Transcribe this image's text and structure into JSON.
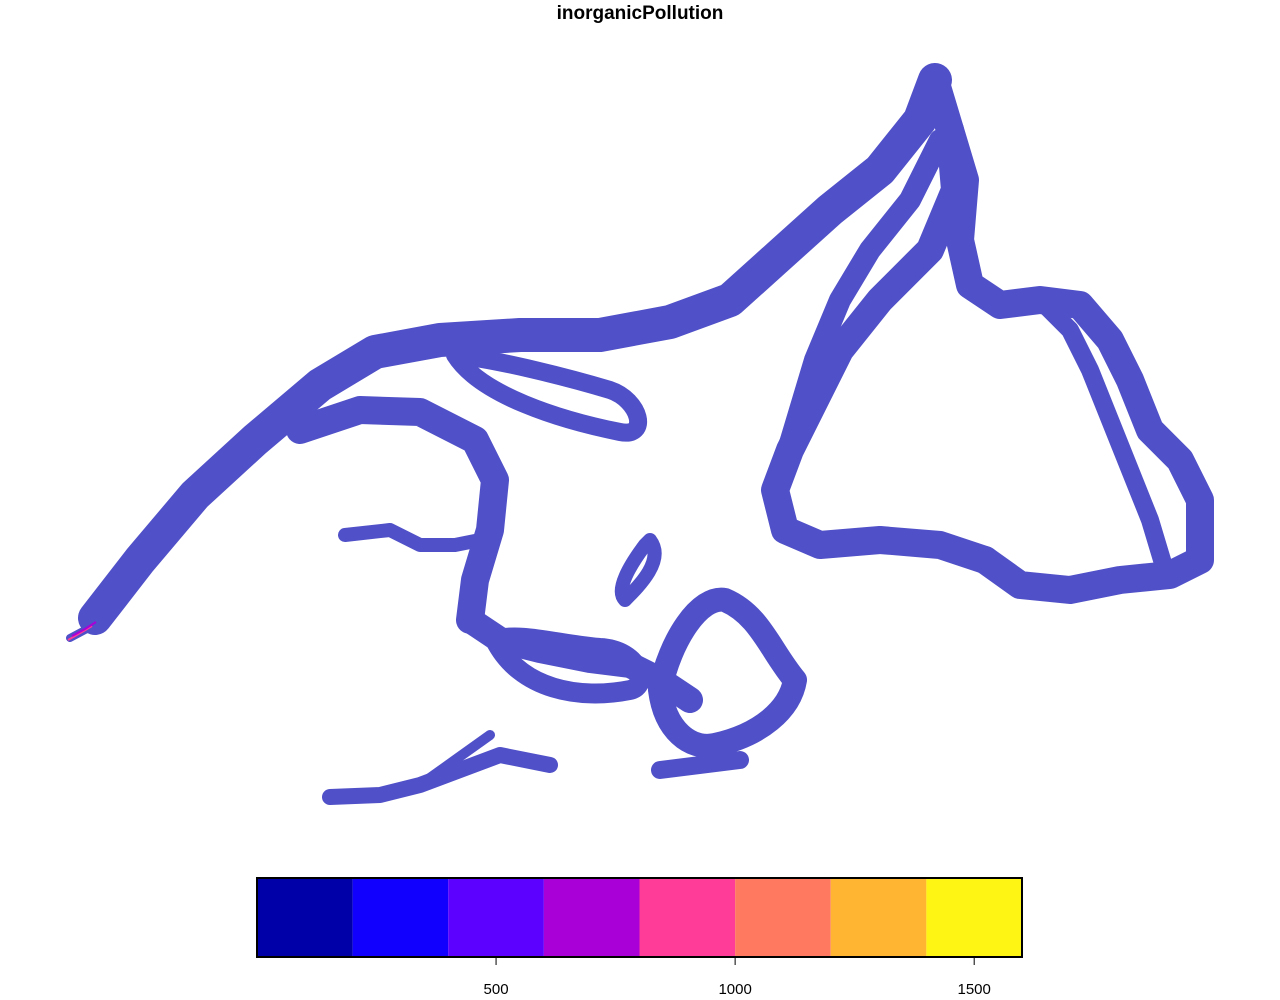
{
  "title": "inorganicPollution",
  "layer": {
    "fill_color": "#5050c8"
  },
  "legend": {
    "range": [
      0,
      1600
    ],
    "breaks": [
      0,
      200,
      400,
      600,
      800,
      1000,
      1200,
      1400,
      1600
    ],
    "colors": [
      "#0000a8",
      "#1200ff",
      "#5c00ff",
      "#a800d6",
      "#ff3c98",
      "#ff7860",
      "#ffb432",
      "#fff514"
    ],
    "ticks": [
      {
        "value": 500,
        "label": "500"
      },
      {
        "value": 1000,
        "label": "1000"
      },
      {
        "value": 1500,
        "label": "1500"
      }
    ]
  }
}
